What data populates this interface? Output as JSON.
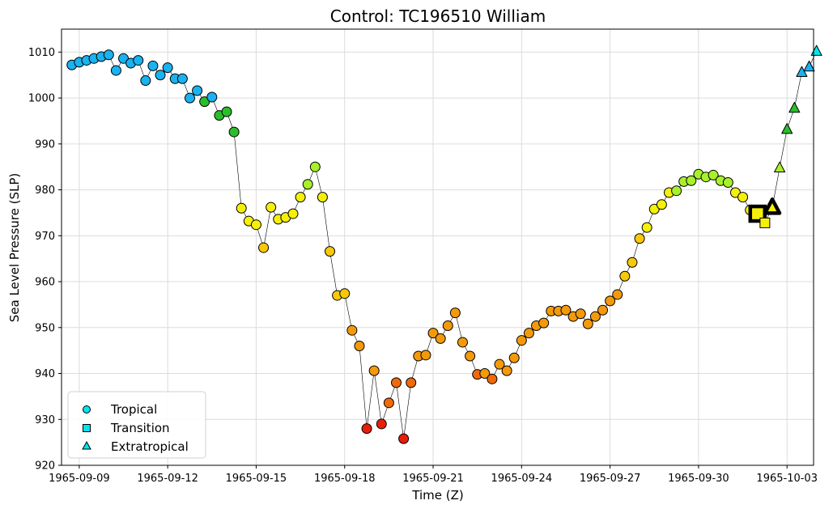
{
  "chart_data": {
    "type": "scatter",
    "title": "Control: TC196510 William",
    "xlabel": "Time (Z)",
    "ylabel": "Sea Level Pressure (SLP)",
    "x_start": "1965-09-08",
    "xlim_days": [
      8.4,
      33.9
    ],
    "ylim": [
      920,
      1015
    ],
    "yticks": [
      920,
      930,
      940,
      950,
      960,
      970,
      980,
      990,
      1000,
      1010
    ],
    "xtick_days": [
      9,
      12,
      15,
      18,
      21,
      24,
      27,
      30,
      33
    ],
    "xtick_labels": [
      "1965-09-09",
      "1965-09-12",
      "1965-09-15",
      "1965-09-18",
      "1965-09-21",
      "1965-09-24",
      "1965-09-27",
      "1965-09-30",
      "1965-10-03"
    ],
    "grid": true,
    "legend_position": "lower-left",
    "legend": [
      {
        "label": "Tropical",
        "marker": "circle"
      },
      {
        "label": "Transition",
        "marker": "square"
      },
      {
        "label": "Extratropical",
        "marker": "triangle"
      }
    ],
    "legend_color": "#00e5ee",
    "line_color": "#000000",
    "colors": {
      "blue": "#1ab2f0",
      "green": "#2bbe2b",
      "lime": "#a8f02a",
      "yellow": "#f5f00a",
      "gold": "#f8c80a",
      "orange": "#f49a0a",
      "darkorange": "#f06a0a",
      "red": "#e81e0a"
    },
    "points": [
      {
        "t": 8.75,
        "y": 1007.2,
        "c": "blue",
        "m": "circle"
      },
      {
        "t": 9.0,
        "y": 1007.8,
        "c": "blue",
        "m": "circle"
      },
      {
        "t": 9.25,
        "y": 1008.2,
        "c": "blue",
        "m": "circle"
      },
      {
        "t": 9.5,
        "y": 1008.6,
        "c": "blue",
        "m": "circle"
      },
      {
        "t": 9.75,
        "y": 1009.0,
        "c": "blue",
        "m": "circle"
      },
      {
        "t": 10.0,
        "y": 1009.4,
        "c": "blue",
        "m": "circle"
      },
      {
        "t": 10.25,
        "y": 1006.0,
        "c": "blue",
        "m": "circle"
      },
      {
        "t": 10.5,
        "y": 1008.6,
        "c": "blue",
        "m": "circle"
      },
      {
        "t": 10.75,
        "y": 1007.6,
        "c": "blue",
        "m": "circle"
      },
      {
        "t": 11.0,
        "y": 1008.2,
        "c": "blue",
        "m": "circle"
      },
      {
        "t": 11.25,
        "y": 1003.8,
        "c": "blue",
        "m": "circle"
      },
      {
        "t": 11.5,
        "y": 1007.0,
        "c": "blue",
        "m": "circle"
      },
      {
        "t": 11.75,
        "y": 1005.0,
        "c": "blue",
        "m": "circle"
      },
      {
        "t": 12.0,
        "y": 1006.6,
        "c": "blue",
        "m": "circle"
      },
      {
        "t": 12.25,
        "y": 1004.2,
        "c": "blue",
        "m": "circle"
      },
      {
        "t": 12.5,
        "y": 1004.2,
        "c": "blue",
        "m": "circle"
      },
      {
        "t": 12.75,
        "y": 1000.0,
        "c": "blue",
        "m": "circle"
      },
      {
        "t": 13.0,
        "y": 1001.6,
        "c": "blue",
        "m": "circle"
      },
      {
        "t": 13.25,
        "y": 999.2,
        "c": "green",
        "m": "circle"
      },
      {
        "t": 13.5,
        "y": 1000.2,
        "c": "blue",
        "m": "circle"
      },
      {
        "t": 13.75,
        "y": 996.2,
        "c": "green",
        "m": "circle"
      },
      {
        "t": 14.0,
        "y": 997.0,
        "c": "green",
        "m": "circle"
      },
      {
        "t": 14.25,
        "y": 992.6,
        "c": "green",
        "m": "circle"
      },
      {
        "t": 14.5,
        "y": 976.0,
        "c": "yellow",
        "m": "circle"
      },
      {
        "t": 14.75,
        "y": 973.2,
        "c": "yellow",
        "m": "circle"
      },
      {
        "t": 15.0,
        "y": 972.4,
        "c": "yellow",
        "m": "circle"
      },
      {
        "t": 15.25,
        "y": 967.4,
        "c": "gold",
        "m": "circle"
      },
      {
        "t": 15.5,
        "y": 976.2,
        "c": "yellow",
        "m": "circle"
      },
      {
        "t": 15.75,
        "y": 973.6,
        "c": "yellow",
        "m": "circle"
      },
      {
        "t": 16.0,
        "y": 974.0,
        "c": "yellow",
        "m": "circle"
      },
      {
        "t": 16.25,
        "y": 974.8,
        "c": "yellow",
        "m": "circle"
      },
      {
        "t": 16.5,
        "y": 978.4,
        "c": "yellow",
        "m": "circle"
      },
      {
        "t": 16.75,
        "y": 981.2,
        "c": "lime",
        "m": "circle"
      },
      {
        "t": 17.0,
        "y": 985.0,
        "c": "lime",
        "m": "circle"
      },
      {
        "t": 17.25,
        "y": 978.4,
        "c": "yellow",
        "m": "circle"
      },
      {
        "t": 17.5,
        "y": 966.6,
        "c": "gold",
        "m": "circle"
      },
      {
        "t": 17.75,
        "y": 957.0,
        "c": "gold",
        "m": "circle"
      },
      {
        "t": 18.0,
        "y": 957.4,
        "c": "gold",
        "m": "circle"
      },
      {
        "t": 18.25,
        "y": 949.4,
        "c": "orange",
        "m": "circle"
      },
      {
        "t": 18.5,
        "y": 946.0,
        "c": "orange",
        "m": "circle"
      },
      {
        "t": 18.75,
        "y": 928.0,
        "c": "red",
        "m": "circle"
      },
      {
        "t": 19.0,
        "y": 940.6,
        "c": "orange",
        "m": "circle"
      },
      {
        "t": 19.25,
        "y": 929.0,
        "c": "red",
        "m": "circle"
      },
      {
        "t": 19.5,
        "y": 933.6,
        "c": "darkorange",
        "m": "circle"
      },
      {
        "t": 19.75,
        "y": 938.0,
        "c": "darkorange",
        "m": "circle"
      },
      {
        "t": 20.0,
        "y": 925.8,
        "c": "red",
        "m": "circle"
      },
      {
        "t": 20.25,
        "y": 938.0,
        "c": "darkorange",
        "m": "circle"
      },
      {
        "t": 20.5,
        "y": 943.8,
        "c": "orange",
        "m": "circle"
      },
      {
        "t": 20.75,
        "y": 944.0,
        "c": "orange",
        "m": "circle"
      },
      {
        "t": 21.0,
        "y": 948.8,
        "c": "orange",
        "m": "circle"
      },
      {
        "t": 21.25,
        "y": 947.6,
        "c": "orange",
        "m": "circle"
      },
      {
        "t": 21.5,
        "y": 950.4,
        "c": "orange",
        "m": "circle"
      },
      {
        "t": 21.75,
        "y": 953.2,
        "c": "orange",
        "m": "circle"
      },
      {
        "t": 22.0,
        "y": 946.8,
        "c": "orange",
        "m": "circle"
      },
      {
        "t": 22.25,
        "y": 943.8,
        "c": "orange",
        "m": "circle"
      },
      {
        "t": 22.5,
        "y": 939.8,
        "c": "darkorange",
        "m": "circle"
      },
      {
        "t": 22.75,
        "y": 940.0,
        "c": "orange",
        "m": "circle"
      },
      {
        "t": 23.0,
        "y": 938.8,
        "c": "darkorange",
        "m": "circle"
      },
      {
        "t": 23.25,
        "y": 942.0,
        "c": "orange",
        "m": "circle"
      },
      {
        "t": 23.5,
        "y": 940.6,
        "c": "orange",
        "m": "circle"
      },
      {
        "t": 23.75,
        "y": 943.4,
        "c": "orange",
        "m": "circle"
      },
      {
        "t": 24.0,
        "y": 947.2,
        "c": "orange",
        "m": "circle"
      },
      {
        "t": 24.25,
        "y": 948.8,
        "c": "orange",
        "m": "circle"
      },
      {
        "t": 24.5,
        "y": 950.4,
        "c": "orange",
        "m": "circle"
      },
      {
        "t": 24.75,
        "y": 951.0,
        "c": "orange",
        "m": "circle"
      },
      {
        "t": 25.0,
        "y": 953.6,
        "c": "orange",
        "m": "circle"
      },
      {
        "t": 25.25,
        "y": 953.6,
        "c": "orange",
        "m": "circle"
      },
      {
        "t": 25.5,
        "y": 953.8,
        "c": "orange",
        "m": "circle"
      },
      {
        "t": 25.75,
        "y": 952.4,
        "c": "orange",
        "m": "circle"
      },
      {
        "t": 26.0,
        "y": 953.0,
        "c": "orange",
        "m": "circle"
      },
      {
        "t": 26.25,
        "y": 950.8,
        "c": "orange",
        "m": "circle"
      },
      {
        "t": 26.5,
        "y": 952.4,
        "c": "orange",
        "m": "circle"
      },
      {
        "t": 26.75,
        "y": 953.8,
        "c": "orange",
        "m": "circle"
      },
      {
        "t": 27.0,
        "y": 955.8,
        "c": "orange",
        "m": "circle"
      },
      {
        "t": 27.25,
        "y": 957.2,
        "c": "orange",
        "m": "circle"
      },
      {
        "t": 27.5,
        "y": 961.2,
        "c": "gold",
        "m": "circle"
      },
      {
        "t": 27.75,
        "y": 964.2,
        "c": "gold",
        "m": "circle"
      },
      {
        "t": 28.0,
        "y": 969.4,
        "c": "gold",
        "m": "circle"
      },
      {
        "t": 28.25,
        "y": 971.8,
        "c": "yellow",
        "m": "circle"
      },
      {
        "t": 28.5,
        "y": 975.8,
        "c": "yellow",
        "m": "circle"
      },
      {
        "t": 28.75,
        "y": 976.8,
        "c": "yellow",
        "m": "circle"
      },
      {
        "t": 29.0,
        "y": 979.4,
        "c": "yellow",
        "m": "circle"
      },
      {
        "t": 29.25,
        "y": 979.8,
        "c": "lime",
        "m": "circle"
      },
      {
        "t": 29.5,
        "y": 981.8,
        "c": "lime",
        "m": "circle"
      },
      {
        "t": 29.75,
        "y": 982.0,
        "c": "lime",
        "m": "circle"
      },
      {
        "t": 30.0,
        "y": 983.4,
        "c": "lime",
        "m": "circle"
      },
      {
        "t": 30.25,
        "y": 982.8,
        "c": "lime",
        "m": "circle"
      },
      {
        "t": 30.5,
        "y": 983.2,
        "c": "lime",
        "m": "circle"
      },
      {
        "t": 30.75,
        "y": 982.0,
        "c": "lime",
        "m": "circle"
      },
      {
        "t": 31.0,
        "y": 981.6,
        "c": "lime",
        "m": "circle"
      },
      {
        "t": 31.25,
        "y": 979.4,
        "c": "yellow",
        "m": "circle"
      },
      {
        "t": 31.5,
        "y": 978.4,
        "c": "yellow",
        "m": "circle"
      },
      {
        "t": 31.75,
        "y": 975.6,
        "c": "yellow",
        "m": "circle"
      },
      {
        "t": 32.0,
        "y": 974.8,
        "c": "yellow",
        "m": "square",
        "big": true
      },
      {
        "t": 32.25,
        "y": 972.8,
        "c": "yellow",
        "m": "square"
      },
      {
        "t": 32.5,
        "y": 976.2,
        "c": "yellow",
        "m": "triangle",
        "big": true
      },
      {
        "t": 32.75,
        "y": 984.8,
        "c": "lime",
        "m": "triangle"
      },
      {
        "t": 33.0,
        "y": 993.2,
        "c": "green",
        "m": "triangle"
      },
      {
        "t": 33.25,
        "y": 997.8,
        "c": "green",
        "m": "triangle"
      },
      {
        "t": 33.5,
        "y": 1005.6,
        "c": "blue",
        "m": "triangle"
      },
      {
        "t": 33.75,
        "y": 1006.8,
        "c": "blue",
        "m": "triangle"
      },
      {
        "t": 34.0,
        "y": 1010.2,
        "c": "legend",
        "m": "triangle"
      }
    ]
  }
}
